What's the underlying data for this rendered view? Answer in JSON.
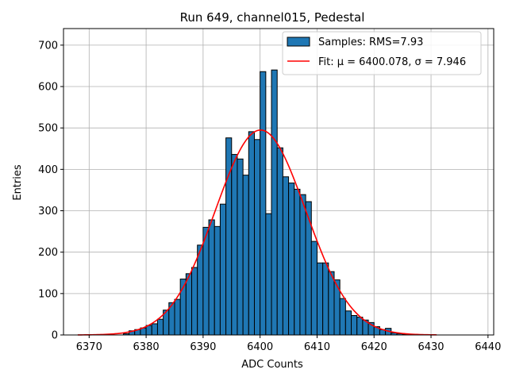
{
  "chart_data": {
    "type": "bar",
    "title": "Run 649, channel015, Pedestal",
    "xlabel": "ADC Counts",
    "ylabel": "Entries",
    "xlim": [
      6365.5,
      6441
    ],
    "ylim": [
      0,
      740
    ],
    "xticks": [
      6370,
      6380,
      6390,
      6400,
      6410,
      6420,
      6430,
      6440
    ],
    "yticks": [
      0,
      100,
      200,
      300,
      400,
      500,
      600,
      700
    ],
    "grid": true,
    "bin_width": 1,
    "bin_starts": [
      6376,
      6377,
      6378,
      6379,
      6380,
      6381,
      6382,
      6383,
      6384,
      6385,
      6386,
      6387,
      6388,
      6389,
      6390,
      6391,
      6392,
      6393,
      6394,
      6395,
      6396,
      6397,
      6398,
      6399,
      6400,
      6401,
      6402,
      6403,
      6404,
      6405,
      6406,
      6407,
      6408,
      6409,
      6410,
      6411,
      6412,
      6413,
      6414,
      6415,
      6416,
      6417,
      6418,
      6419,
      6420,
      6421,
      6422,
      6423,
      6424,
      6425
    ],
    "counts": [
      3,
      10,
      13,
      17,
      23,
      27,
      38,
      60,
      78,
      86,
      135,
      148,
      163,
      217,
      260,
      278,
      262,
      316,
      476,
      436,
      425,
      386,
      491,
      472,
      636,
      293,
      640,
      452,
      382,
      367,
      352,
      339,
      322,
      226,
      174,
      174,
      153,
      133,
      88,
      58,
      47,
      43,
      36,
      30,
      20,
      13,
      16,
      5,
      3,
      2
    ],
    "fit": {
      "mu": 6400.078,
      "sigma": 7.946,
      "amplitude": 495,
      "x_range": [
        6368,
        6431
      ]
    },
    "series_colors": {
      "bar_fill": "#1f77b4",
      "bar_edge": "#000000",
      "fit_line": "#ff0000",
      "grid": "#b0b0b0"
    },
    "legend": {
      "placement": "upper-right",
      "entries": [
        {
          "label": "Samples: RMS=7.93",
          "kind": "patch"
        },
        {
          "label": "Fit: μ = 6400.078, σ = 7.946",
          "kind": "line"
        }
      ]
    }
  }
}
